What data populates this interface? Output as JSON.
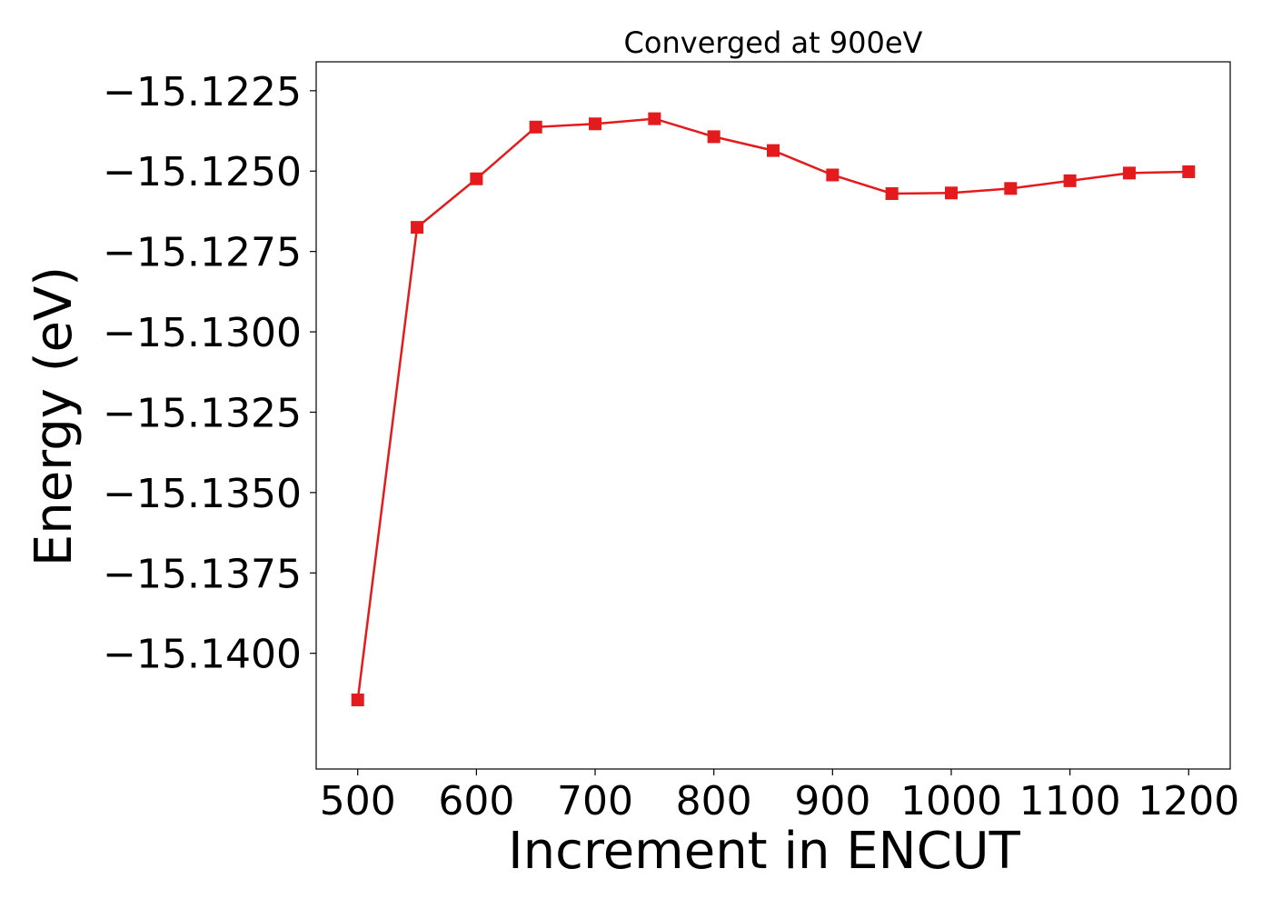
{
  "chart_data": {
    "type": "line",
    "title": "Converged at 900eV",
    "xlabel": "Increment in ENCUT",
    "ylabel": "Energy (eV)",
    "x": [
      500,
      550,
      600,
      650,
      700,
      750,
      800,
      850,
      900,
      950,
      1000,
      1050,
      1100,
      1150,
      1200
    ],
    "series": [
      {
        "values": [
          -15.14145,
          -15.12675,
          -15.12524,
          -15.12363,
          -15.12353,
          -15.12337,
          -15.12393,
          -15.12436,
          -15.12512,
          -15.1257,
          -15.12568,
          -15.12554,
          -15.1253,
          -15.12506,
          -15.12502
        ],
        "color": "#e41a1c",
        "marker": "square"
      }
    ],
    "xticks": [
      500,
      600,
      700,
      800,
      900,
      1000,
      1100,
      1200
    ],
    "xtick_labels": [
      "500",
      "600",
      "700",
      "800",
      "900",
      "1000",
      "1100",
      "1200"
    ],
    "yticks": [
      -15.1225,
      -15.125,
      -15.1275,
      -15.13,
      -15.1325,
      -15.135,
      -15.1375,
      -15.14
    ],
    "ytick_labels": [
      "−15.1225",
      "−15.1250",
      "−15.1275",
      "−15.1300",
      "−15.1325",
      "−15.1350",
      "−15.1375",
      "−15.1400"
    ],
    "xlim": [
      465,
      1235
    ],
    "ylim": [
      -15.1436,
      -15.1216
    ],
    "grid": false,
    "legend": "none"
  }
}
